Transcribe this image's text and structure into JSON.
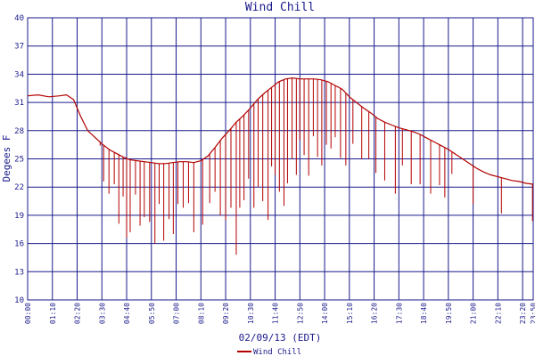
{
  "chart_data": {
    "type": "line",
    "title": "Wind Chill",
    "xlabel": "02/09/13 (EDT)",
    "ylabel": "Degees F",
    "ylim": [
      10,
      40
    ],
    "yticks": [
      10,
      13,
      16,
      19,
      22,
      25,
      28,
      31,
      34,
      37,
      40
    ],
    "xticks": [
      "00:00",
      "01:10",
      "02:20",
      "03:30",
      "04:40",
      "05:50",
      "07:00",
      "08:10",
      "09:20",
      "10:30",
      "11:40",
      "12:50",
      "14:00",
      "15:10",
      "16:20",
      "17:30",
      "18:40",
      "19:50",
      "21:00",
      "22:10",
      "23:20",
      "23:50"
    ],
    "grid": true,
    "legend_position": "bottom-left",
    "series": [
      {
        "name": "Wind Chill",
        "color": "#b30000",
        "x_minutes": [
          0,
          30,
          60,
          90,
          110,
          130,
          150,
          170,
          190,
          210,
          230,
          250,
          270,
          290,
          310,
          330,
          350,
          370,
          390,
          410,
          430,
          450,
          470,
          490,
          510,
          530,
          550,
          570,
          590,
          610,
          630,
          650,
          670,
          690,
          710,
          730,
          750,
          770,
          790,
          810,
          830,
          850,
          870,
          890,
          910,
          930,
          950,
          970,
          990,
          1010,
          1030,
          1050,
          1070,
          1090,
          1110,
          1130,
          1150,
          1170,
          1190,
          1210,
          1230,
          1250,
          1270,
          1290,
          1310,
          1330,
          1350,
          1370,
          1390,
          1410,
          1430
        ],
        "values": [
          31.7,
          31.8,
          31.6,
          31.7,
          31.8,
          31.3,
          29.5,
          28.0,
          27.3,
          26.6,
          26.0,
          25.6,
          25.2,
          24.9,
          24.8,
          24.7,
          24.6,
          24.5,
          24.5,
          24.6,
          24.7,
          24.7,
          24.6,
          24.8,
          25.3,
          26.2,
          27.2,
          28.0,
          28.9,
          29.6,
          30.4,
          31.3,
          32.0,
          32.6,
          33.2,
          33.5,
          33.6,
          33.5,
          33.5,
          33.5,
          33.4,
          33.2,
          32.8,
          32.4,
          31.6,
          31.0,
          30.4,
          29.9,
          29.3,
          28.9,
          28.6,
          28.3,
          28.1,
          27.9,
          27.6,
          27.2,
          26.8,
          26.4,
          26.0,
          25.5,
          25.0,
          24.5,
          24.0,
          23.6,
          23.3,
          23.1,
          22.9,
          22.7,
          22.6,
          22.4,
          22.3
        ],
        "dip_minutes": [
          205,
          215,
          230,
          245,
          258,
          270,
          280,
          290,
          305,
          318,
          330,
          345,
          360,
          372,
          385,
          400,
          412,
          425,
          440,
          455,
          470,
          495,
          515,
          530,
          545,
          560,
          575,
          590,
          600,
          612,
          625,
          640,
          652,
          665,
          680,
          690,
          700,
          712,
          725,
          735,
          748,
          760,
          770,
          782,
          795,
          808,
          820,
          832,
          845,
          858,
          870,
          885,
          900,
          920,
          945,
          965,
          985,
          1010,
          1040,
          1060,
          1085,
          1110,
          1140,
          1165,
          1180,
          1200,
          1260,
          1340,
          1428
        ],
        "dip_values": [
          26.4,
          22.6,
          21.3,
          22.3,
          18.1,
          21.0,
          16.6,
          17.2,
          21.2,
          17.9,
          18.8,
          18.3,
          16.0,
          20.2,
          16.3,
          18.6,
          17.0,
          20.2,
          19.8,
          20.3,
          17.2,
          18.0,
          20.3,
          21.5,
          19.0,
          18.5,
          19.8,
          14.8,
          19.8,
          20.6,
          22.9,
          19.8,
          22.0,
          20.5,
          18.5,
          24.2,
          23.3,
          21.5,
          20.0,
          22.4,
          25.0,
          23.3,
          27.0,
          25.4,
          23.2,
          27.4,
          25.2,
          24.3,
          26.5,
          26.1,
          27.3,
          25.1,
          24.3,
          26.6,
          25.0,
          25.0,
          23.5,
          22.7,
          21.3,
          24.3,
          22.3,
          22.3,
          21.3,
          22.2,
          20.9,
          23.4,
          20.2,
          19.2,
          18.4
        ]
      }
    ]
  }
}
